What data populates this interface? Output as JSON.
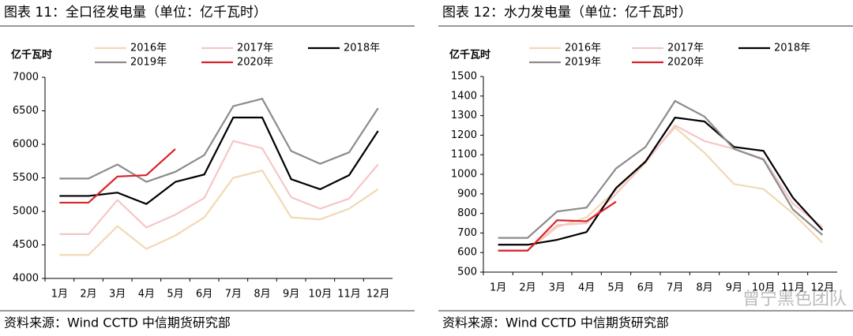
{
  "chart_data": [
    {
      "type": "line",
      "title": "图表 11：全口径发电量（单位：亿千瓦时）",
      "y_label": "亿千瓦时",
      "source": "资料来源：Wind CCTD 中信期货研究部",
      "categories": [
        "1月",
        "2月",
        "3月",
        "4月",
        "5月",
        "6月",
        "7月",
        "8月",
        "9月",
        "10月",
        "11月",
        "12月"
      ],
      "ylim": [
        4000,
        7000
      ],
      "yticks": [
        4000,
        4500,
        5000,
        5500,
        6000,
        6500,
        7000
      ],
      "series": [
        {
          "name": "2016年",
          "color": "#f0d9b5",
          "values": [
            4350,
            4350,
            4780,
            4440,
            4640,
            4910,
            5500,
            5610,
            4910,
            4880,
            5040,
            5330
          ]
        },
        {
          "name": "2017年",
          "color": "#f6c6c8",
          "values": [
            4660,
            4660,
            5170,
            4760,
            4950,
            5200,
            6050,
            5940,
            5210,
            5040,
            5190,
            5700
          ]
        },
        {
          "name": "2018年",
          "color": "#000000",
          "values": [
            5230,
            5230,
            5280,
            5110,
            5440,
            5550,
            6400,
            6400,
            5480,
            5330,
            5540,
            6200
          ]
        },
        {
          "name": "2019年",
          "color": "#8c8c8c",
          "values": [
            5490,
            5490,
            5700,
            5440,
            5590,
            5840,
            6570,
            6680,
            5900,
            5710,
            5880,
            6540
          ]
        },
        {
          "name": "2020年",
          "color": "#d9232a",
          "values": [
            5130,
            5130,
            5520,
            5540,
            5930,
            null,
            null,
            null,
            null,
            null,
            null,
            null
          ]
        }
      ]
    },
    {
      "type": "line",
      "title": "图表 12：水力发电量（单位：亿千瓦时）",
      "y_label": "亿千瓦时",
      "source": "资料来源：Wind CCTD 中信期货研究部",
      "categories": [
        "1月",
        "2月",
        "3月",
        "4月",
        "5月",
        "6月",
        "7月",
        "8月",
        "9月",
        "10月",
        "11月",
        "12月"
      ],
      "ylim": [
        500,
        1500
      ],
      "yticks": [
        500,
        600,
        700,
        800,
        900,
        1000,
        1100,
        1200,
        1300,
        1400,
        1500
      ],
      "series": [
        {
          "name": "2016年",
          "color": "#f0d9b5",
          "values": [
            610,
            610,
            730,
            780,
            920,
            1070,
            1240,
            1110,
            950,
            925,
            800,
            650
          ]
        },
        {
          "name": "2017年",
          "color": "#f6c6c8",
          "values": [
            610,
            610,
            740,
            750,
            900,
            1060,
            1250,
            1170,
            1130,
            1080,
            850,
            730
          ]
        },
        {
          "name": "2018年",
          "color": "#000000",
          "values": [
            640,
            640,
            665,
            705,
            930,
            1065,
            1290,
            1270,
            1140,
            1120,
            880,
            715
          ]
        },
        {
          "name": "2019年",
          "color": "#8c8c8c",
          "values": [
            675,
            675,
            810,
            830,
            1030,
            1140,
            1375,
            1295,
            1130,
            1075,
            820,
            690
          ]
        },
        {
          "name": "2020年",
          "color": "#d9232a",
          "values": [
            610,
            610,
            765,
            760,
            860,
            null,
            null,
            null,
            null,
            null,
            null,
            null
          ]
        }
      ]
    }
  ],
  "watermark": "曾宁黑色团队"
}
